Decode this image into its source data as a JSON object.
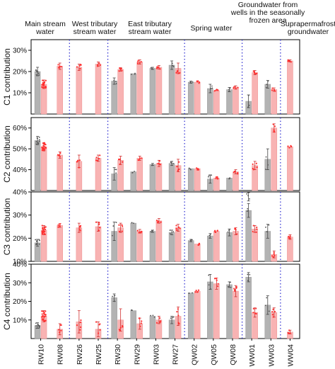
{
  "chart_data": {
    "type": "bar",
    "sites": [
      "RW10",
      "RW08",
      "RW26",
      "RW25",
      "RW30",
      "RW29",
      "RW03",
      "RW27",
      "QW02",
      "QW05",
      "QW08",
      "WW01",
      "WW03",
      "WW04"
    ],
    "groups": [
      {
        "label": "Main stream water",
        "sites": [
          "RW10",
          "RW08"
        ]
      },
      {
        "label": "West tributary stream water",
        "sites": [
          "RW26",
          "RW25"
        ]
      },
      {
        "label": "East tributary stream water",
        "sites": [
          "RW30",
          "RW29",
          "RW03",
          "RW27"
        ]
      },
      {
        "label": "Spring water",
        "sites": [
          "QW02",
          "QW05",
          "QW08"
        ]
      },
      {
        "label": "Groundwater  from wells in the seasonally frozen area",
        "sites": [
          "WW01",
          "WW03"
        ]
      },
      {
        "label": "Suprapermafrost groundwater",
        "sites": [
          "WW04"
        ]
      }
    ],
    "series_colors": {
      "gray": "#b3b3b3",
      "red": "#f8b3b3",
      "gray_points": "#555555",
      "red_points": "#ff3030",
      "separator": "#2a2ad0"
    },
    "panels": [
      {
        "ylabel": "C1 contribution",
        "ylim": [
          0,
          35
        ],
        "yticks": [
          10,
          20,
          30
        ],
        "ytick_labels": [
          "10%",
          "20%",
          "30%"
        ],
        "gray": [
          20,
          null,
          null,
          null,
          15.5,
          19,
          21.5,
          23,
          15,
          12,
          11.5,
          6,
          14,
          null
        ],
        "gray_err": [
          2,
          null,
          null,
          null,
          1.5,
          0,
          0.5,
          2,
          0.5,
          2,
          1,
          3,
          1.8,
          null
        ],
        "red": [
          14,
          22.5,
          22,
          23.5,
          21,
          24.5,
          22,
          21.5,
          15,
          11,
          12.5,
          19.5,
          11.5,
          25
        ],
        "red_err": [
          2,
          1.5,
          1.5,
          1,
          0.8,
          1,
          0.8,
          2.5,
          0,
          0,
          0.8,
          1,
          0.8,
          0.5
        ]
      },
      {
        "ylabel": "C2 contribution",
        "ylim": [
          30,
          65
        ],
        "yticks": [
          40,
          50,
          60
        ],
        "ytick_labels": [
          "40%",
          "50%",
          "60%"
        ],
        "gray": [
          54,
          null,
          null,
          null,
          38,
          39,
          42.5,
          43,
          40.5,
          35.5,
          36,
          27,
          45,
          null
        ],
        "gray_err": [
          2,
          null,
          null,
          null,
          3,
          0,
          0.5,
          1,
          0,
          2,
          0,
          2,
          5,
          null
        ],
        "red": [
          51,
          47,
          44,
          45.5,
          44.5,
          45.5,
          43,
          42,
          40.5,
          36,
          39,
          42,
          60,
          51
        ],
        "red_err": [
          2,
          1.5,
          3,
          1.5,
          2,
          1,
          1.5,
          3,
          0,
          0,
          1,
          2,
          2,
          0
        ]
      },
      {
        "ylabel": "C3 contribution",
        "ylim": [
          10,
          40
        ],
        "yticks": [
          10,
          20,
          30,
          40
        ],
        "ytick_labels": [
          "10%",
          "20%",
          "30%",
          "40%"
        ],
        "gray": [
          18,
          null,
          null,
          null,
          23,
          26.5,
          23,
          22.5,
          19,
          21,
          22.5,
          32,
          23,
          null
        ],
        "gray_err": [
          1.5,
          null,
          null,
          null,
          4,
          0,
          0.5,
          1,
          0.5,
          1,
          1.5,
          3,
          3,
          null
        ],
        "red": [
          23.5,
          25.5,
          24.5,
          25,
          24.5,
          23,
          27.5,
          24.5,
          17.5,
          23,
          23,
          24,
          13,
          20.5
        ],
        "red_err": [
          2,
          0.8,
          2,
          2,
          2,
          0.8,
          1,
          1.5,
          0,
          0,
          1.5,
          1.5,
          1.5,
          1
        ]
      },
      {
        "ylabel": "C4 contribution",
        "ylim": [
          0,
          40
        ],
        "yticks": [
          10,
          20,
          30,
          40
        ],
        "ytick_labels": [
          "10%",
          "20%",
          "30%",
          "40%"
        ],
        "gray": [
          7,
          null,
          null,
          null,
          22,
          15,
          12,
          10,
          24.5,
          30.5,
          29,
          33,
          18,
          null
        ],
        "gray_err": [
          1.5,
          null,
          null,
          null,
          2,
          0,
          0,
          2,
          0,
          4,
          1.5,
          2.5,
          5,
          null
        ],
        "red": [
          12,
          5,
          9,
          5,
          10,
          8,
          10,
          12,
          25.5,
          29.5,
          25.5,
          14,
          14,
          3.5
        ],
        "red_err": [
          3,
          3,
          6,
          4,
          6,
          3,
          2,
          5,
          0,
          3,
          3,
          2.5,
          2.5,
          1
        ]
      }
    ]
  }
}
